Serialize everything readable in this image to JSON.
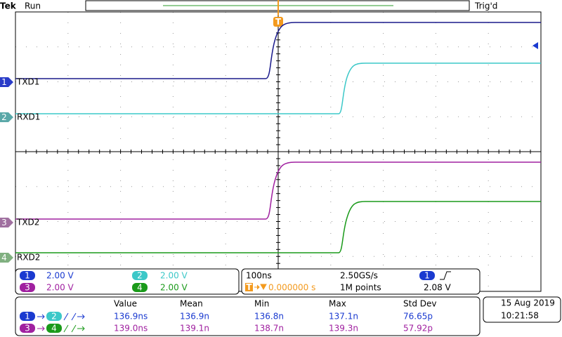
{
  "header": {
    "brand": "Tek",
    "state": "Run",
    "trigger_status": "Trig'd",
    "trigger_marker": "T"
  },
  "channels": [
    {
      "number": "1",
      "label": "TXD1",
      "scale": "2.00 V"
    },
    {
      "number": "2",
      "label": "RXD1",
      "scale": "2.00 V"
    },
    {
      "number": "3",
      "label": "TXD2",
      "scale": "2.00 V"
    },
    {
      "number": "4",
      "label": "RXD2",
      "scale": "2.00 V"
    }
  ],
  "timebase": {
    "horizontal_scale": "100ns",
    "sample_rate": "2.50GS/s",
    "trigger_source": "1",
    "trigger_position": "0.000000 s",
    "record_length": "1M points",
    "trigger_level": "2.08 V"
  },
  "measurements": {
    "columns": [
      "Value",
      "Mean",
      "Min",
      "Max",
      "Std Dev"
    ],
    "rows": [
      {
        "source": "1",
        "target": "2",
        "cells": [
          "136.9ns",
          "136.9n",
          "136.8n",
          "137.1n",
          "76.65p"
        ]
      },
      {
        "source": "3",
        "target": "4",
        "cells": [
          "139.0ns",
          "139.1n",
          "138.7n",
          "139.3n",
          "57.92p"
        ]
      }
    ]
  },
  "datetime": {
    "date": "15 Aug 2019",
    "time": "10:21:58"
  }
}
